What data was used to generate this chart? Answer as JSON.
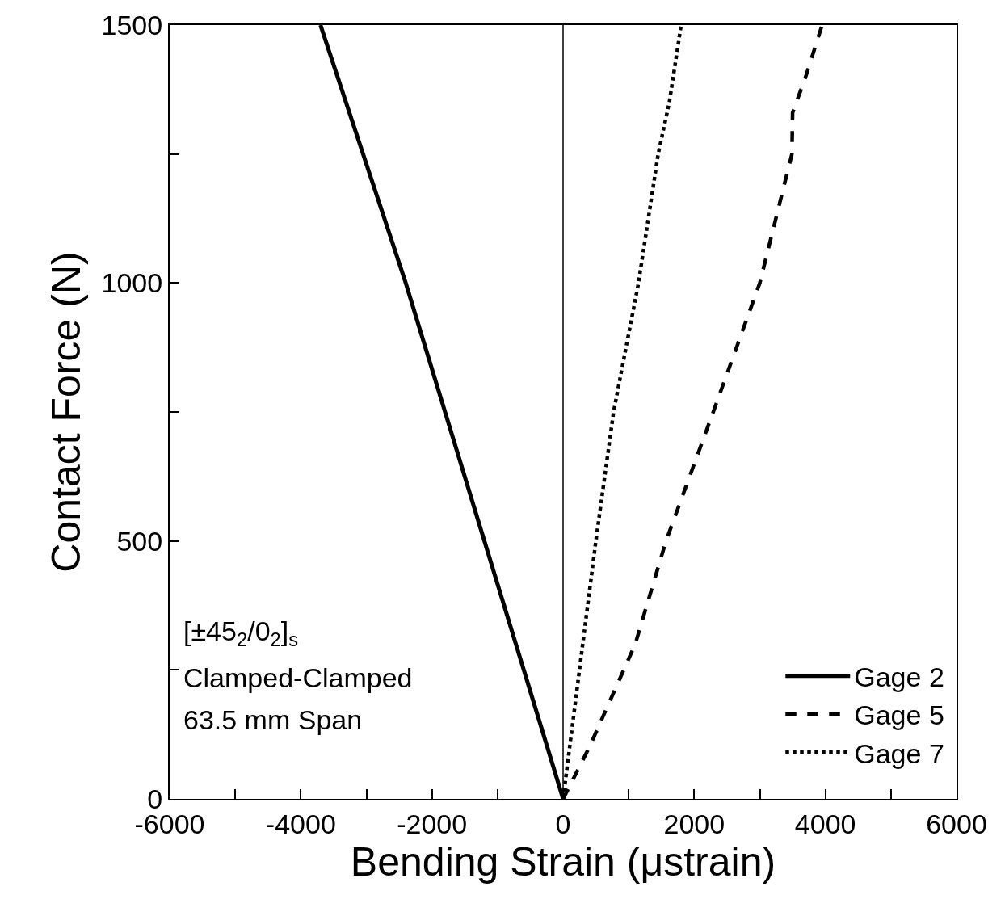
{
  "chart_data": {
    "type": "line",
    "xlabel": "Bending Strain (μstrain)",
    "ylabel": "Contact Force (N)",
    "xlim": [
      -6000,
      6000
    ],
    "xticks": [
      -6000,
      -4000,
      -2000,
      0,
      2000,
      4000,
      6000
    ],
    "ylim": [
      0,
      1500
    ],
    "yticks": [
      0,
      500,
      1000,
      1500
    ],
    "grid": false,
    "legend": "bottom right",
    "marker": "none",
    "ref_lines": [
      {
        "axis": "x",
        "value": 0,
        "color": "#000000",
        "line_style": "solid"
      }
    ],
    "annotations": [
      "[±45$_{2}$/0$_{2}$]$_{s}$",
      "Clamped-Clamped",
      "63.5 mm Span"
    ],
    "series": [
      {
        "name": "Gage 2",
        "color": "#000000",
        "line_style": "solid",
        "x": [
          0,
          -600,
          -1200,
          -1800,
          -2400,
          -3050,
          -3700
        ],
        "values": [
          0,
          250,
          500,
          750,
          1000,
          1250,
          1500
        ]
      },
      {
        "name": "Gage 5",
        "color": "#000000",
        "line_style": "dashed",
        "x": [
          0,
          400,
          1100,
          1570,
          2290,
          3000,
          3490,
          3500,
          3700,
          3950
        ],
        "values": [
          0,
          100,
          300,
          500,
          750,
          1000,
          1250,
          1330,
          1400,
          1500
        ]
      },
      {
        "name": "Gage 7",
        "color": "#000000",
        "line_style": "dotted",
        "x": [
          0,
          250,
          500,
          770,
          1150,
          1450,
          1620,
          1800
        ],
        "values": [
          0,
          250,
          500,
          750,
          1000,
          1250,
          1350,
          1500
        ]
      }
    ]
  }
}
